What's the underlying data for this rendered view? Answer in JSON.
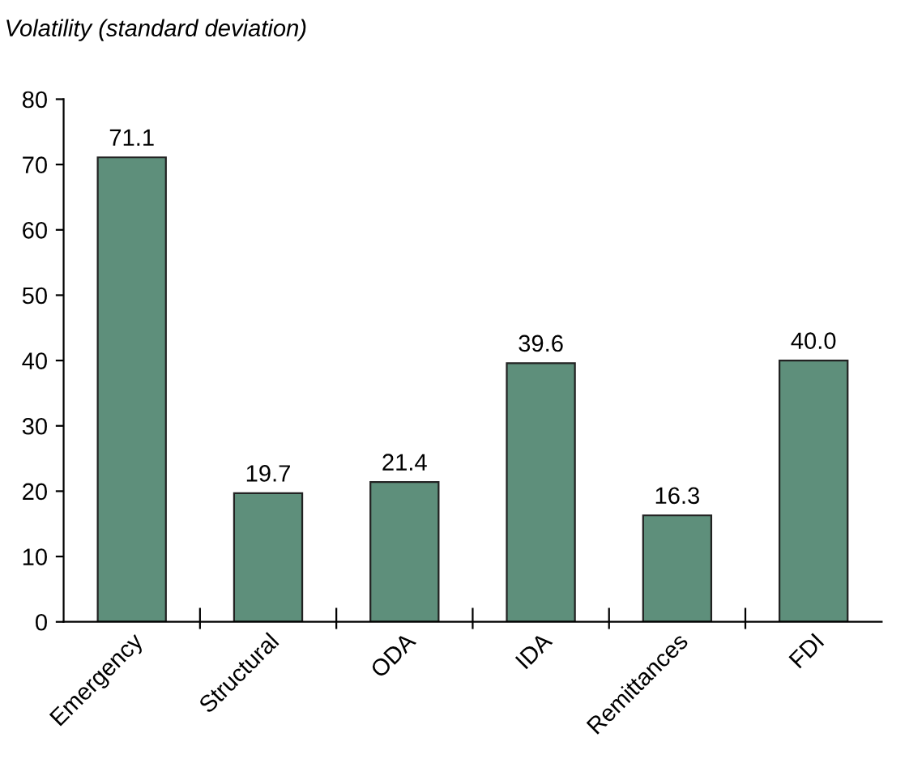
{
  "chart_data": {
    "type": "bar",
    "ylabel": "Volatility (standard deviation)",
    "categories": [
      "Emergency",
      "Structural",
      "ODA",
      "IDA",
      "Remittances",
      "FDI"
    ],
    "values": [
      71.1,
      19.7,
      21.4,
      39.6,
      16.3,
      40.0
    ],
    "value_labels": [
      "71.1",
      "19.7",
      "21.4",
      "39.6",
      "16.3",
      "40.0"
    ],
    "color": "#5e8f7b",
    "ylim": [
      0,
      80
    ],
    "yticks": [
      0,
      10,
      20,
      30,
      40,
      50,
      60,
      70,
      80
    ],
    "grid": false,
    "legend": false
  }
}
